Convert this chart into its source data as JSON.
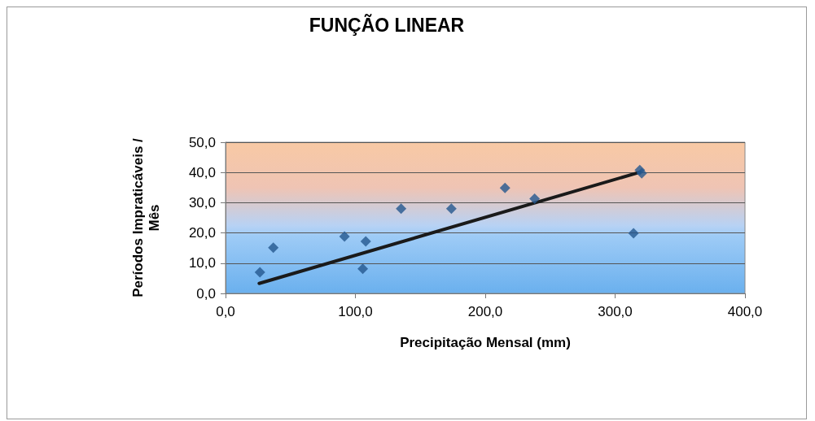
{
  "chart_data": {
    "type": "scatter",
    "title": "FUNÇÃO LINEAR",
    "xlabel": "Precipitação Mensal (mm)",
    "ylabel": "Períodos Impraticáveis / Mês",
    "series": [
      {
        "color": "#24578f",
        "marker": "diamond",
        "x": [
          26.5,
          36.8,
          91.6,
          105.7,
          108,
          135.2,
          173.9,
          215.2,
          238,
          314.2,
          319,
          320.5
        ],
        "values": [
          7.0,
          15.1,
          18.8,
          8.1,
          17.2,
          28.0,
          28.0,
          34.9,
          31.3,
          19.9,
          40.8,
          39.7
        ]
      },
      {
        "type": "line",
        "color": "#1a1a1a",
        "marker": "none",
        "line_style": "solid",
        "x": [
          25.9,
          319
        ],
        "values": [
          3.3,
          40.1
        ]
      }
    ],
    "xlim": [
      0,
      400
    ],
    "xticks": [
      {
        "value": 0,
        "label": "0,0"
      },
      {
        "value": 100,
        "label": "100,0"
      },
      {
        "value": 200,
        "label": "200,0"
      },
      {
        "value": 300,
        "label": "300,0"
      },
      {
        "value": 400,
        "label": "400,0"
      }
    ],
    "ylim": [
      0,
      50
    ],
    "yticks": [
      {
        "value": 0,
        "label": "0,0"
      },
      {
        "value": 10,
        "label": "10,0"
      },
      {
        "value": 20,
        "label": "20,0"
      },
      {
        "value": 30,
        "label": "30,0"
      },
      {
        "value": 40,
        "label": "40,0"
      },
      {
        "value": 50,
        "label": "50,0"
      }
    ],
    "grid": "y"
  }
}
